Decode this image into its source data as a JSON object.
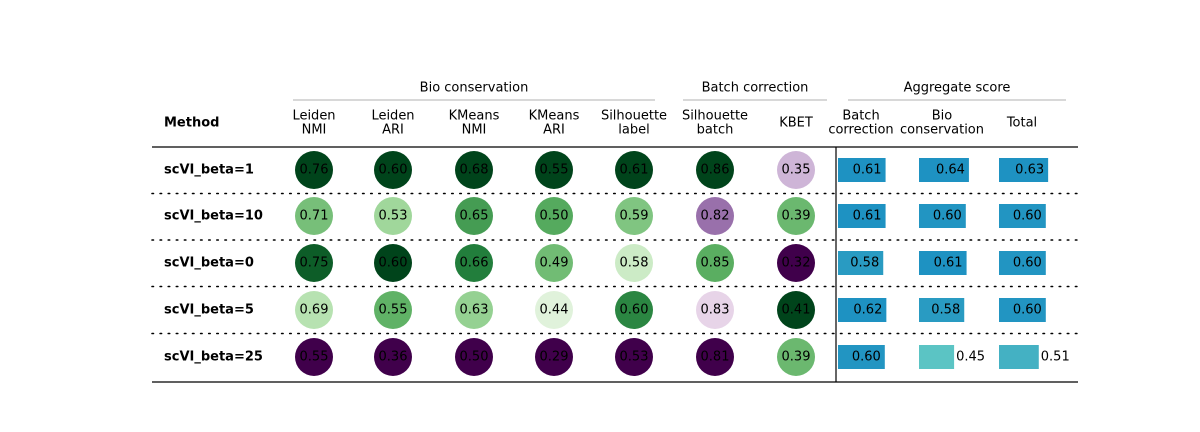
{
  "chart_data": {
    "type": "table",
    "method_header": "Method",
    "groups": [
      {
        "label": "Bio conservation",
        "columns": [
          0,
          1,
          2,
          3,
          4
        ]
      },
      {
        "label": "Batch correction",
        "columns": [
          5,
          6
        ]
      },
      {
        "label": "Aggregate score",
        "columns": [
          7,
          8,
          9
        ]
      }
    ],
    "columns": [
      {
        "label": [
          "Leiden",
          "NMI"
        ],
        "kind": "circle"
      },
      {
        "label": [
          "Leiden",
          "ARI"
        ],
        "kind": "circle"
      },
      {
        "label": [
          "KMeans",
          "NMI"
        ],
        "kind": "circle"
      },
      {
        "label": [
          "KMeans",
          "ARI"
        ],
        "kind": "circle"
      },
      {
        "label": [
          "Silhouette",
          "label"
        ],
        "kind": "circle"
      },
      {
        "label": [
          "Silhouette",
          "batch"
        ],
        "kind": "circle"
      },
      {
        "label": [
          "KBET"
        ],
        "kind": "circle"
      },
      {
        "label": [
          "Batch",
          "correction"
        ],
        "kind": "bar"
      },
      {
        "label": [
          "Bio",
          "conservation"
        ],
        "kind": "bar"
      },
      {
        "label": [
          "Total"
        ],
        "kind": "bar"
      }
    ],
    "rows": [
      {
        "method": "scVI_beta=1",
        "values": [
          "0.76",
          "0.60",
          "0.68",
          "0.55",
          "0.61",
          "0.86",
          "0.35",
          "0.61",
          "0.64",
          "0.63"
        ]
      },
      {
        "method": "scVI_beta=10",
        "values": [
          "0.71",
          "0.53",
          "0.65",
          "0.50",
          "0.59",
          "0.82",
          "0.39",
          "0.61",
          "0.60",
          "0.60"
        ]
      },
      {
        "method": "scVI_beta=0",
        "values": [
          "0.75",
          "0.60",
          "0.66",
          "0.49",
          "0.58",
          "0.85",
          "0.32",
          "0.58",
          "0.61",
          "0.60"
        ]
      },
      {
        "method": "scVI_beta=5",
        "values": [
          "0.69",
          "0.55",
          "0.63",
          "0.44",
          "0.60",
          "0.83",
          "0.41",
          "0.62",
          "0.58",
          "0.60"
        ]
      },
      {
        "method": "scVI_beta=25",
        "values": [
          "0.55",
          "0.36",
          "0.50",
          "0.29",
          "0.53",
          "0.81",
          "0.39",
          "0.60",
          "0.45",
          "0.51"
        ]
      }
    ],
    "colormap_circles": "PRGn",
    "colormap_bars": "YlGnBu"
  }
}
